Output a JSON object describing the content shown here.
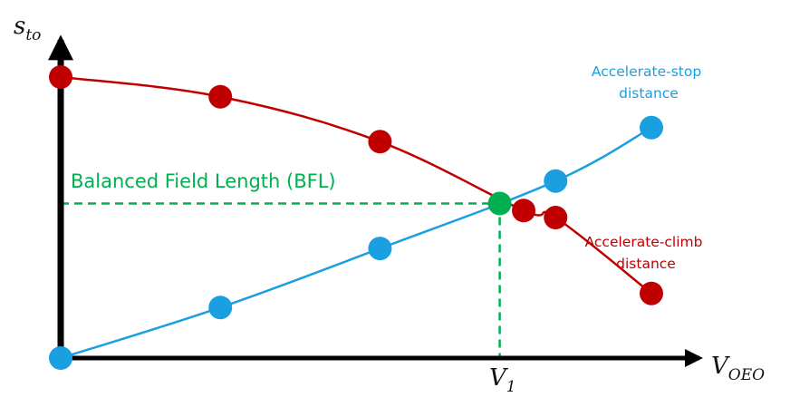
{
  "chart_data": {
    "type": "line",
    "title": "",
    "xlabel": {
      "main": "V",
      "sub": "OEO"
    },
    "ylabel": {
      "main": "s",
      "sub": "to"
    },
    "x_tick": {
      "main": "V",
      "sub": "1"
    },
    "grid": false,
    "series": [
      {
        "key": "climb",
        "name_lines": [
          "Accelerate-climb",
          "distance"
        ],
        "color": "#c00000",
        "points": [
          [
            0,
            10
          ],
          [
            2,
            9.3
          ],
          [
            4,
            7.7
          ],
          [
            5.8,
            5.25
          ],
          [
            6.2,
            5.0
          ],
          [
            7.4,
            2.3
          ]
        ]
      },
      {
        "key": "stop",
        "name_lines": [
          "Accelerate-stop",
          "distance"
        ],
        "color": "#1a9fe0",
        "points": [
          [
            0,
            0
          ],
          [
            2,
            1.8
          ],
          [
            4,
            3.9
          ],
          [
            6.2,
            6.3
          ],
          [
            7.4,
            8.2
          ]
        ]
      }
    ],
    "intersection": {
      "x": 5.5,
      "y": 5.5,
      "color": "#00b050",
      "label": "Balanced Field Length (BFL)"
    }
  }
}
